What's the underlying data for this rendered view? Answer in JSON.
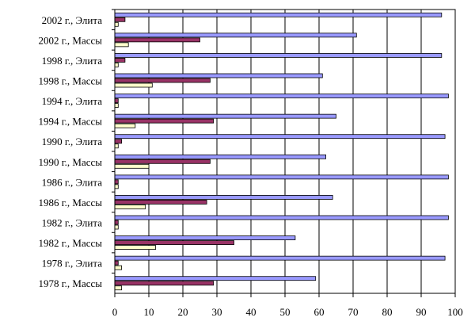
{
  "chart_data": {
    "type": "bar",
    "orientation": "horizontal",
    "title": "",
    "xlabel": "",
    "ylabel": "",
    "xlim": [
      0,
      100
    ],
    "x_ticks": [
      0,
      10,
      20,
      30,
      40,
      50,
      60,
      70,
      80,
      90,
      100
    ],
    "grid": "vertical",
    "legend": "none",
    "categories": [
      "2002 г., Элита",
      "2002 г., Массы",
      "1998 г., Элита",
      "1998 г., Массы",
      "1994 г., Элита",
      "1994 г., Массы",
      "1990 г., Элита",
      "1990 г., Массы",
      "1986 г., Элита",
      "1986 г., Массы",
      "1982 г., Элита",
      "1982 г., Массы",
      "1978 г., Элита",
      "1978 г., Массы"
    ],
    "series": [
      {
        "color": "#9999ff",
        "values": [
          96,
          71,
          96,
          61,
          98,
          65,
          97,
          62,
          98,
          64,
          98,
          53,
          97,
          59
        ]
      },
      {
        "color": "#993366",
        "values": [
          3,
          25,
          3,
          28,
          1,
          29,
          2,
          28,
          1,
          27,
          1,
          35,
          1,
          29
        ]
      },
      {
        "color": "#ffffcc",
        "values": [
          1,
          4,
          1,
          11,
          1,
          6,
          1,
          10,
          1,
          9,
          1,
          12,
          2,
          2
        ]
      }
    ]
  }
}
